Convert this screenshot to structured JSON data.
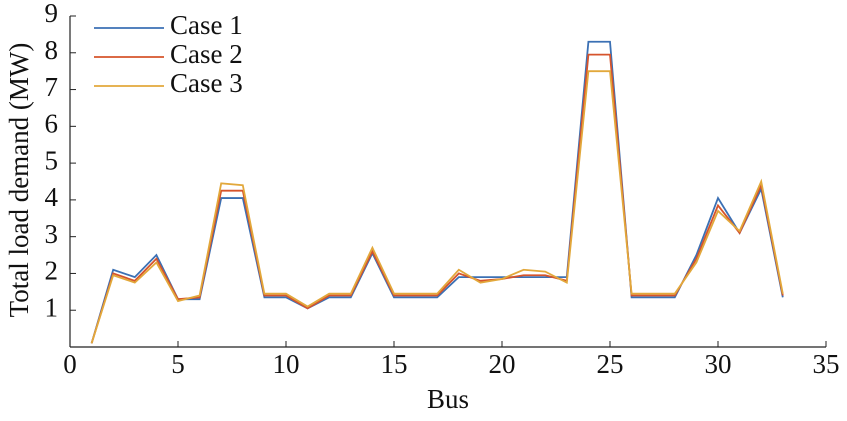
{
  "chart_data": {
    "type": "line",
    "xlabel": "Bus",
    "ylabel": "Total load demand (MW)",
    "x": [
      1,
      2,
      3,
      4,
      5,
      6,
      7,
      8,
      9,
      10,
      11,
      12,
      13,
      14,
      15,
      16,
      17,
      18,
      19,
      20,
      21,
      22,
      23,
      24,
      25,
      26,
      27,
      28,
      29,
      30,
      31,
      32,
      33
    ],
    "series": [
      {
        "name": "Case 1",
        "color": "#3b70b4",
        "values": [
          0.1,
          2.1,
          1.9,
          2.5,
          1.3,
          1.3,
          4.05,
          4.05,
          1.35,
          1.35,
          1.05,
          1.35,
          1.35,
          2.55,
          1.35,
          1.35,
          1.35,
          1.9,
          1.9,
          1.9,
          1.9,
          1.9,
          1.9,
          8.3,
          8.3,
          1.35,
          1.35,
          1.35,
          2.5,
          4.05,
          3.1,
          4.3,
          1.35
        ]
      },
      {
        "name": "Case 2",
        "color": "#d6542c",
        "values": [
          0.1,
          2.0,
          1.8,
          2.4,
          1.3,
          1.35,
          4.25,
          4.25,
          1.4,
          1.4,
          1.05,
          1.4,
          1.4,
          2.6,
          1.4,
          1.4,
          1.4,
          2.0,
          1.8,
          1.85,
          1.95,
          1.95,
          1.8,
          7.95,
          7.95,
          1.4,
          1.4,
          1.4,
          2.4,
          3.85,
          3.1,
          4.4,
          1.4
        ]
      },
      {
        "name": "Case 3",
        "color": "#e2a83b",
        "values": [
          0.1,
          1.95,
          1.75,
          2.3,
          1.25,
          1.4,
          4.45,
          4.4,
          1.45,
          1.45,
          1.1,
          1.45,
          1.45,
          2.7,
          1.45,
          1.45,
          1.45,
          2.1,
          1.75,
          1.85,
          2.1,
          2.05,
          1.75,
          7.5,
          7.5,
          1.45,
          1.45,
          1.45,
          2.3,
          3.7,
          3.15,
          4.5,
          1.45
        ]
      }
    ],
    "xlim": [
      0,
      35
    ],
    "xticks": [
      0,
      5,
      10,
      15,
      20,
      25,
      30,
      35
    ],
    "ylim": [
      0,
      9
    ],
    "yticks": [
      1,
      2,
      3,
      4,
      5,
      6,
      7,
      8,
      9
    ],
    "grid": false,
    "legend": "upper-left"
  }
}
